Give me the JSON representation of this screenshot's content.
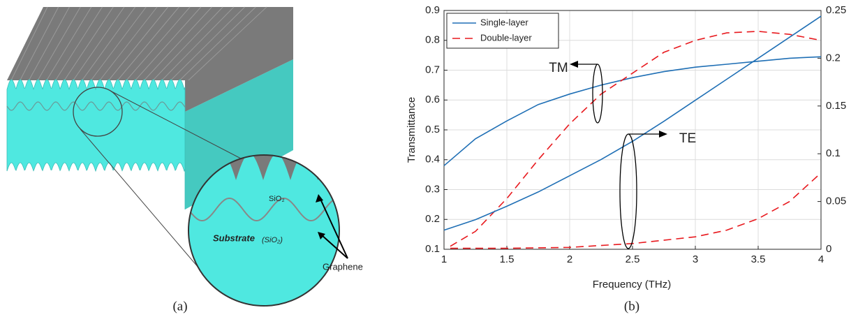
{
  "panel_labels": [
    "(a)",
    "(b)"
  ],
  "diagram": {
    "labels": {
      "sio2": "SiO₂",
      "substrate": "Substrate",
      "substrate_material": "(SiO₂)",
      "graphene": "Graphene"
    }
  },
  "chart_data": {
    "type": "line",
    "x_label": "Frequency (THz)",
    "y_label": "Transmittance",
    "xlim": [
      1,
      4
    ],
    "xticks": [
      1,
      1.5,
      2,
      2.5,
      3,
      3.5,
      4
    ],
    "ylim": [
      0.1,
      0.9
    ],
    "yticks": [
      0.1,
      0.2,
      0.3,
      0.4,
      0.5,
      0.6,
      0.7,
      0.8,
      0.9
    ],
    "y2lim": [
      0,
      0.25
    ],
    "y2ticks": [
      0,
      0.05,
      0.1,
      0.15,
      0.2,
      0.25
    ],
    "grid": true,
    "legend": "upper left",
    "annotations": [
      "TM",
      "TE"
    ],
    "series": [
      {
        "name": "Single-layer",
        "color": "#1f6fb5",
        "dash": "solid",
        "x": [
          1,
          1.25,
          1.5,
          1.75,
          2,
          2.25,
          2.5,
          2.75,
          3,
          3.25,
          3.5,
          3.75,
          4
        ],
        "values": [
          0.38,
          0.47,
          0.53,
          0.585,
          0.62,
          0.65,
          0.675,
          0.695,
          0.71,
          0.72,
          0.73,
          0.74,
          0.745
        ]
      },
      {
        "name": "Double-layer",
        "color": "#e8191e",
        "dash": "dashed",
        "x": [
          1.05,
          1.25,
          1.5,
          1.75,
          2,
          2.25,
          2.5,
          2.75,
          3,
          3.25,
          3.5,
          3.75,
          4
        ],
        "values": [
          0.11,
          0.16,
          0.27,
          0.4,
          0.52,
          0.62,
          0.69,
          0.76,
          0.8,
          0.825,
          0.83,
          0.82,
          0.8
        ]
      },
      {
        "name": "Single-layer",
        "color": "#1f6fb5",
        "dash": "solid",
        "axis": "y2",
        "x": [
          1,
          1.25,
          1.5,
          1.75,
          2,
          2.25,
          2.5,
          2.75,
          3,
          3.25,
          3.5,
          3.75,
          4
        ],
        "values": [
          0.02,
          0.031,
          0.045,
          0.06,
          0.077,
          0.094,
          0.113,
          0.134,
          0.156,
          0.178,
          0.2,
          0.222,
          0.244
        ]
      },
      {
        "name": "Double-layer",
        "color": "#e8191e",
        "dash": "dashed",
        "axis": "y2",
        "x": [
          1.05,
          1.5,
          2,
          2.5,
          3,
          3.25,
          3.5,
          3.75,
          4
        ],
        "values": [
          0.001,
          0.001,
          0.002,
          0.006,
          0.013,
          0.02,
          0.032,
          0.05,
          0.08
        ]
      }
    ]
  }
}
